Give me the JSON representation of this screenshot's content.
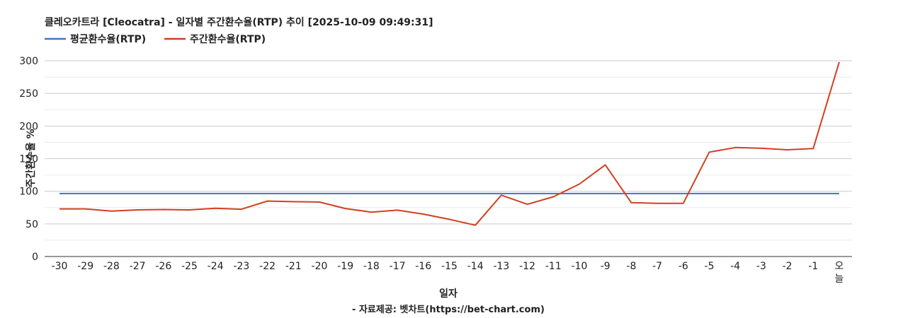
{
  "chart_data": {
    "type": "line",
    "title": "클레오카트라 [Cleocatra] - 일자별 주간환수율(RTP) 추이 [2025-10-09 09:49:31]",
    "xlabel": "일자",
    "ylabel": "주간환수율 %",
    "source": "- 자료제공: 벳차트(https://bet-chart.com)",
    "legend_position": "top-left",
    "grid": true,
    "ylim": [
      0,
      300
    ],
    "yticks": [
      "0",
      "50",
      "100",
      "150",
      "200",
      "250",
      "300"
    ],
    "categories": [
      "-30",
      "-29",
      "-28",
      "-27",
      "-26",
      "-25",
      "-24",
      "-23",
      "-22",
      "-21",
      "-20",
      "-19",
      "-18",
      "-17",
      "-16",
      "-15",
      "-14",
      "-13",
      "-12",
      "-11",
      "-10",
      "-9",
      "-8",
      "-7",
      "-6",
      "-5",
      "-4",
      "-3",
      "-2",
      "-1",
      "오늘"
    ],
    "series": [
      {
        "name": "평균환수율(RTP)",
        "color": "#4472c4",
        "values": [
          96.5,
          96.5,
          96.5,
          96.5,
          96.5,
          96.5,
          96.5,
          96.5,
          96.5,
          96.5,
          96.5,
          96.5,
          96.5,
          96.5,
          96.5,
          96.5,
          96.5,
          96.5,
          96.5,
          96.5,
          96.5,
          96.5,
          96.5,
          96.5,
          96.5,
          96.5,
          96.5,
          96.5,
          96.5,
          96.5,
          96.5
        ]
      },
      {
        "name": "주간환수율(RTP)",
        "color": "#d1401f",
        "values": [
          73,
          73,
          69.5,
          71.5,
          72,
          71.5,
          74,
          72.5,
          85,
          84,
          83.5,
          73.5,
          68,
          71,
          65,
          57,
          48,
          94,
          80,
          91.5,
          111,
          140.5,
          82.5,
          81.5,
          81.5,
          160,
          167,
          166,
          163.5,
          165.5,
          298
        ]
      }
    ]
  }
}
